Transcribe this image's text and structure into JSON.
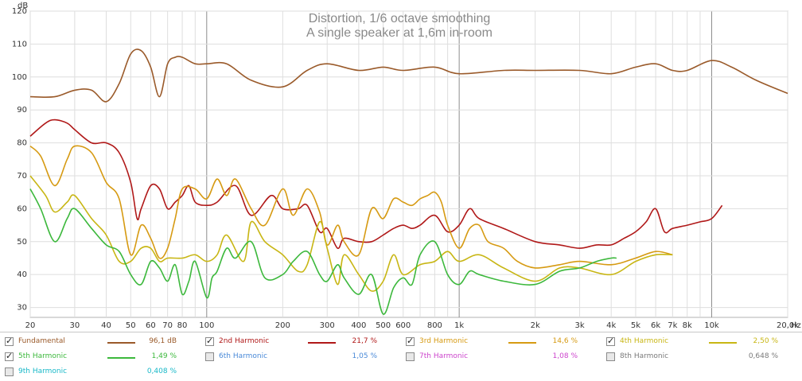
{
  "chart_data": {
    "type": "line",
    "title": "Distortion, 1/6 octave smoothing",
    "subtitle": "A single speaker at 1,6m in-room",
    "ylabel": "dB",
    "xunit": "Hz",
    "xscale": "log",
    "xlim": [
      20,
      20000
    ],
    "ylim": [
      27,
      120
    ],
    "grid": true,
    "x_ticks": [
      {
        "v": 20,
        "label": "20"
      },
      {
        "v": 30,
        "label": "30"
      },
      {
        "v": 40,
        "label": "40"
      },
      {
        "v": 50,
        "label": "50"
      },
      {
        "v": 60,
        "label": "60"
      },
      {
        "v": 70,
        "label": "70"
      },
      {
        "v": 80,
        "label": "80"
      },
      {
        "v": 100,
        "label": "100"
      },
      {
        "v": 200,
        "label": "200"
      },
      {
        "v": 300,
        "label": "300"
      },
      {
        "v": 400,
        "label": "400"
      },
      {
        "v": 500,
        "label": "500"
      },
      {
        "v": 600,
        "label": "600"
      },
      {
        "v": 800,
        "label": "800"
      },
      {
        "v": 1000,
        "label": "1k"
      },
      {
        "v": 2000,
        "label": "2k"
      },
      {
        "v": 3000,
        "label": "3k"
      },
      {
        "v": 4000,
        "label": "4k"
      },
      {
        "v": 5000,
        "label": "5k"
      },
      {
        "v": 6000,
        "label": "6k"
      },
      {
        "v": 7000,
        "label": "7k"
      },
      {
        "v": 8000,
        "label": "8k"
      },
      {
        "v": 10000,
        "label": "10k"
      },
      {
        "v": 20000,
        "label": "20,0k"
      }
    ],
    "y_ticks": [
      30,
      40,
      50,
      60,
      70,
      80,
      90,
      100,
      110,
      120
    ],
    "series": [
      {
        "name": "Fundamental",
        "legend_value": "96,1 dB",
        "color": "#9a5a2a",
        "visible": true,
        "x": [
          20,
          25,
          30,
          35,
          40,
          45,
          50,
          55,
          60,
          65,
          70,
          75,
          80,
          90,
          100,
          120,
          150,
          200,
          250,
          300,
          400,
          500,
          600,
          800,
          1000,
          1500,
          2000,
          3000,
          4000,
          5000,
          6000,
          7000,
          8000,
          10000,
          12000,
          15000,
          20000
        ],
        "y": [
          94,
          94,
          96,
          96,
          92.5,
          98,
          107,
          108,
          103,
          94,
          104,
          106,
          106,
          104,
          104,
          104,
          99,
          97,
          102,
          104,
          102,
          103,
          102,
          103,
          101,
          102,
          102,
          102,
          101,
          103,
          104,
          102,
          102,
          105,
          103,
          99,
          95
        ]
      },
      {
        "name": "2nd Harmonic",
        "legend_value": "21,7 %",
        "color": "#b01818",
        "visible": true,
        "x": [
          20,
          23,
          25,
          28,
          30,
          35,
          40,
          45,
          50,
          53,
          55,
          60,
          65,
          70,
          75,
          80,
          85,
          90,
          100,
          110,
          130,
          150,
          180,
          200,
          230,
          250,
          280,
          300,
          330,
          350,
          400,
          450,
          500,
          550,
          600,
          650,
          700,
          800,
          900,
          1000,
          1100,
          1200,
          1500,
          2000,
          2500,
          3000,
          3500,
          4000,
          4500,
          5000,
          5500,
          6000,
          6500,
          7000,
          8000,
          9000,
          10000,
          11000
        ],
        "y": [
          82,
          86,
          87,
          86,
          84,
          80,
          80,
          77,
          68,
          57,
          60,
          67,
          66,
          60,
          62,
          64,
          67,
          62,
          61,
          62,
          67,
          58,
          64,
          60,
          60,
          61,
          53,
          54,
          48,
          51,
          50,
          50,
          52,
          54,
          55,
          54,
          55,
          58,
          53,
          55,
          60,
          57,
          54,
          50,
          49,
          48,
          49,
          49,
          51,
          53,
          56,
          60,
          53,
          54,
          55,
          56,
          57,
          61
        ]
      },
      {
        "name": "3rd Harmonic",
        "legend_value": "14,6 %",
        "color": "#d69a12",
        "visible": true,
        "x": [
          20,
          22,
          25,
          28,
          30,
          35,
          40,
          45,
          50,
          55,
          60,
          65,
          70,
          75,
          80,
          90,
          100,
          110,
          120,
          130,
          150,
          170,
          200,
          220,
          250,
          280,
          300,
          330,
          350,
          400,
          450,
          500,
          550,
          600,
          650,
          700,
          750,
          800,
          850,
          900,
          1000,
          1100,
          1200,
          1300,
          1500,
          1700,
          2000,
          2500,
          3000,
          4000,
          5000,
          6000,
          7000
        ],
        "y": [
          79,
          76,
          67,
          75,
          79,
          77,
          68,
          63,
          46,
          55,
          51,
          45,
          48,
          57,
          66,
          66,
          63,
          69,
          64,
          69,
          60,
          55,
          66,
          58,
          66,
          59,
          49,
          55,
          50,
          46,
          60,
          57,
          63,
          62,
          61,
          63,
          64,
          65,
          62,
          55,
          48,
          54,
          55,
          50,
          48,
          44,
          42,
          43,
          44,
          43,
          45,
          47,
          46
        ]
      },
      {
        "name": "4th Harmonic",
        "legend_value": "2,50 %",
        "color": "#c8b614",
        "visible": true,
        "x": [
          20,
          23,
          25,
          28,
          30,
          35,
          40,
          45,
          50,
          55,
          60,
          65,
          70,
          80,
          90,
          100,
          110,
          120,
          140,
          150,
          170,
          200,
          230,
          250,
          280,
          300,
          330,
          350,
          400,
          450,
          500,
          550,
          600,
          700,
          800,
          900,
          1000,
          1200,
          1500,
          2000,
          2500,
          3000,
          4000,
          5000,
          6000,
          7000
        ],
        "y": [
          70,
          64,
          59,
          62,
          64,
          57,
          52,
          44,
          44,
          48,
          48,
          44,
          45,
          45,
          46,
          44,
          46,
          52,
          44,
          56,
          50,
          46,
          41,
          43,
          56,
          48,
          37,
          46,
          40,
          35,
          38,
          46,
          40,
          43,
          44,
          47,
          44,
          46,
          42,
          38,
          42,
          42,
          40,
          44,
          46,
          46
        ]
      },
      {
        "name": "5th Harmonic",
        "legend_value": "1,49 %",
        "color": "#3cb83c",
        "visible": true,
        "x": [
          20,
          22,
          25,
          28,
          30,
          35,
          40,
          45,
          50,
          55,
          60,
          65,
          70,
          75,
          80,
          85,
          90,
          100,
          105,
          110,
          120,
          130,
          150,
          170,
          200,
          220,
          250,
          280,
          300,
          330,
          350,
          400,
          450,
          500,
          550,
          600,
          650,
          700,
          800,
          900,
          1000,
          1100,
          1200,
          1500,
          2000,
          2500,
          3000,
          3500,
          4000,
          4200
        ],
        "y": [
          66,
          60,
          50,
          57,
          60,
          54,
          49,
          47,
          40,
          37,
          44,
          42,
          38,
          43,
          34,
          38,
          44,
          33,
          39,
          41,
          48,
          45,
          50,
          39,
          40,
          44,
          47,
          40,
          38,
          43,
          39,
          34,
          40,
          28,
          36,
          39,
          37,
          46,
          50,
          40,
          37,
          41,
          40,
          38,
          37,
          41,
          42,
          44,
          45,
          45
        ]
      },
      {
        "name": "6th Harmonic",
        "legend_value": "1,05 %",
        "color": "#4a8ad8",
        "visible": false
      },
      {
        "name": "7th Harmonic",
        "legend_value": "1,08 %",
        "color": "#cc44cc",
        "visible": false
      },
      {
        "name": "8th Harmonic",
        "legend_value": "0,648 %",
        "color": "#7a7a7a",
        "visible": false
      },
      {
        "name": "9th Harmonic",
        "legend_value": "0,408 %",
        "color": "#18b8c8",
        "visible": false
      }
    ]
  }
}
